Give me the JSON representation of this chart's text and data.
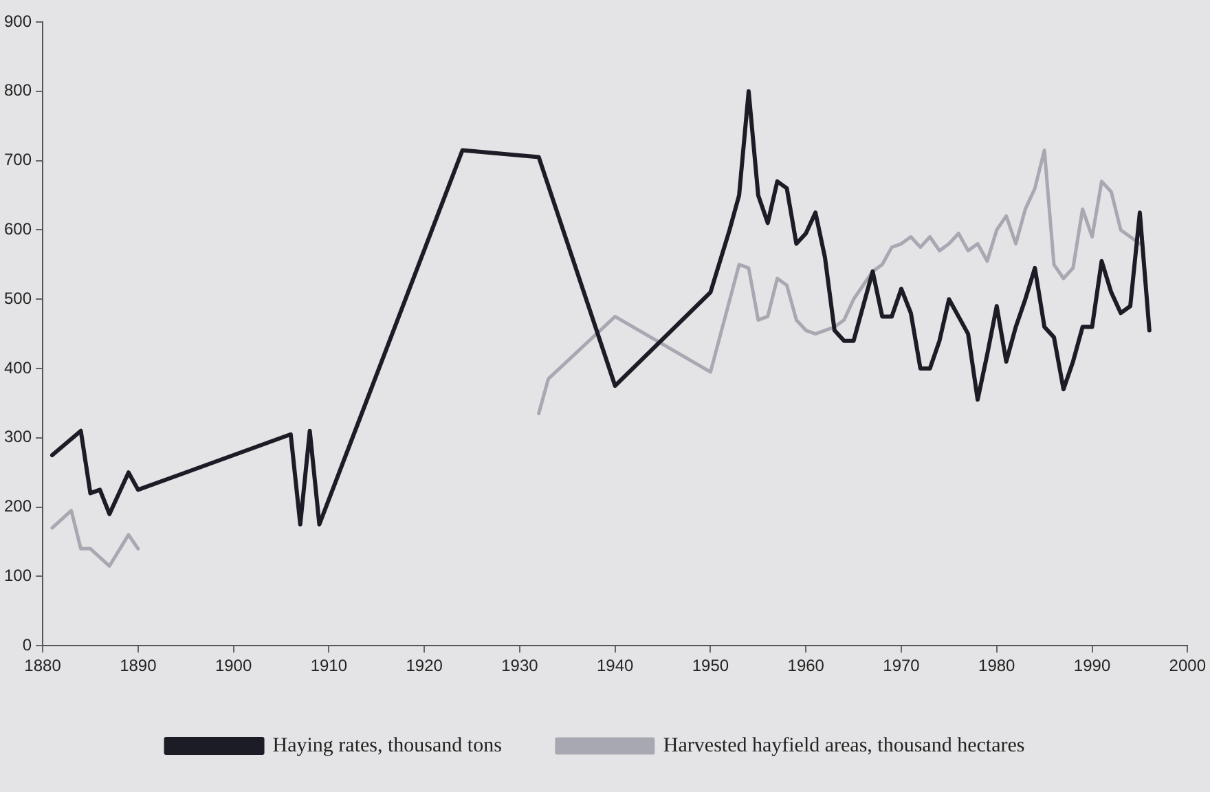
{
  "chart_data": {
    "type": "line",
    "xlim": [
      1880,
      2000
    ],
    "xticks": [
      1880,
      1890,
      1900,
      1910,
      1920,
      1930,
      1940,
      1950,
      1960,
      1970,
      1980,
      1990,
      2000
    ],
    "ylim": [
      0,
      900
    ],
    "yticks": [
      0,
      100,
      200,
      300,
      400,
      500,
      600,
      700,
      800,
      900
    ],
    "legend": "bottom",
    "line_style": "solid",
    "series": [
      {
        "name": "Haying rates, thousand tons",
        "color": "#1c1c26",
        "x": [
          1881,
          1884,
          1885,
          1886,
          1887,
          1889,
          1890,
          1906,
          1907,
          1908,
          1909,
          1924,
          1932,
          1940,
          1950,
          1952,
          1953,
          1954,
          1955,
          1956,
          1957,
          1958,
          1959,
          1960,
          1961,
          1962,
          1963,
          1964,
          1965,
          1966,
          1967,
          1968,
          1969,
          1970,
          1971,
          1972,
          1973,
          1974,
          1975,
          1976,
          1977,
          1978,
          1979,
          1980,
          1981,
          1982,
          1983,
          1984,
          1985,
          1986,
          1987,
          1988,
          1989,
          1990,
          1991,
          1992,
          1993,
          1994,
          1995,
          1996
        ],
        "values": [
          275,
          310,
          220,
          225,
          190,
          250,
          225,
          305,
          175,
          310,
          175,
          715,
          705,
          375,
          510,
          600,
          650,
          800,
          650,
          610,
          670,
          660,
          580,
          595,
          625,
          560,
          455,
          440,
          440,
          490,
          540,
          475,
          475,
          515,
          480,
          400,
          400,
          440,
          500,
          475,
          450,
          355,
          420,
          490,
          410,
          460,
          500,
          545,
          460,
          445,
          370,
          410,
          460,
          460,
          555,
          510,
          480,
          490,
          625,
          455
        ]
      },
      {
        "name": "Harvested hayfield areas, thousand hectares",
        "color": "#a8a8b2",
        "x": [
          1881,
          1883,
          1884,
          1885,
          1887,
          1889,
          1890,
          1900,
          1932,
          1933,
          1940,
          1950,
          1953,
          1954,
          1955,
          1956,
          1957,
          1958,
          1959,
          1960,
          1961,
          1962,
          1963,
          1964,
          1965,
          1966,
          1967,
          1968,
          1969,
          1970,
          1971,
          1972,
          1973,
          1974,
          1975,
          1976,
          1977,
          1978,
          1979,
          1980,
          1981,
          1982,
          1983,
          1984,
          1985,
          1986,
          1987,
          1988,
          1989,
          1990,
          1991,
          1992,
          1993,
          1994,
          1995
        ],
        "values": [
          170,
          195,
          140,
          140,
          115,
          160,
          140,
          null,
          335,
          385,
          475,
          395,
          550,
          545,
          470,
          475,
          530,
          520,
          470,
          455,
          450,
          455,
          460,
          470,
          500,
          520,
          540,
          550,
          575,
          580,
          590,
          575,
          590,
          570,
          580,
          595,
          570,
          580,
          555,
          600,
          620,
          580,
          630,
          660,
          715,
          550,
          530,
          545,
          630,
          590,
          670,
          655,
          600,
          590,
          580
        ]
      }
    ]
  }
}
